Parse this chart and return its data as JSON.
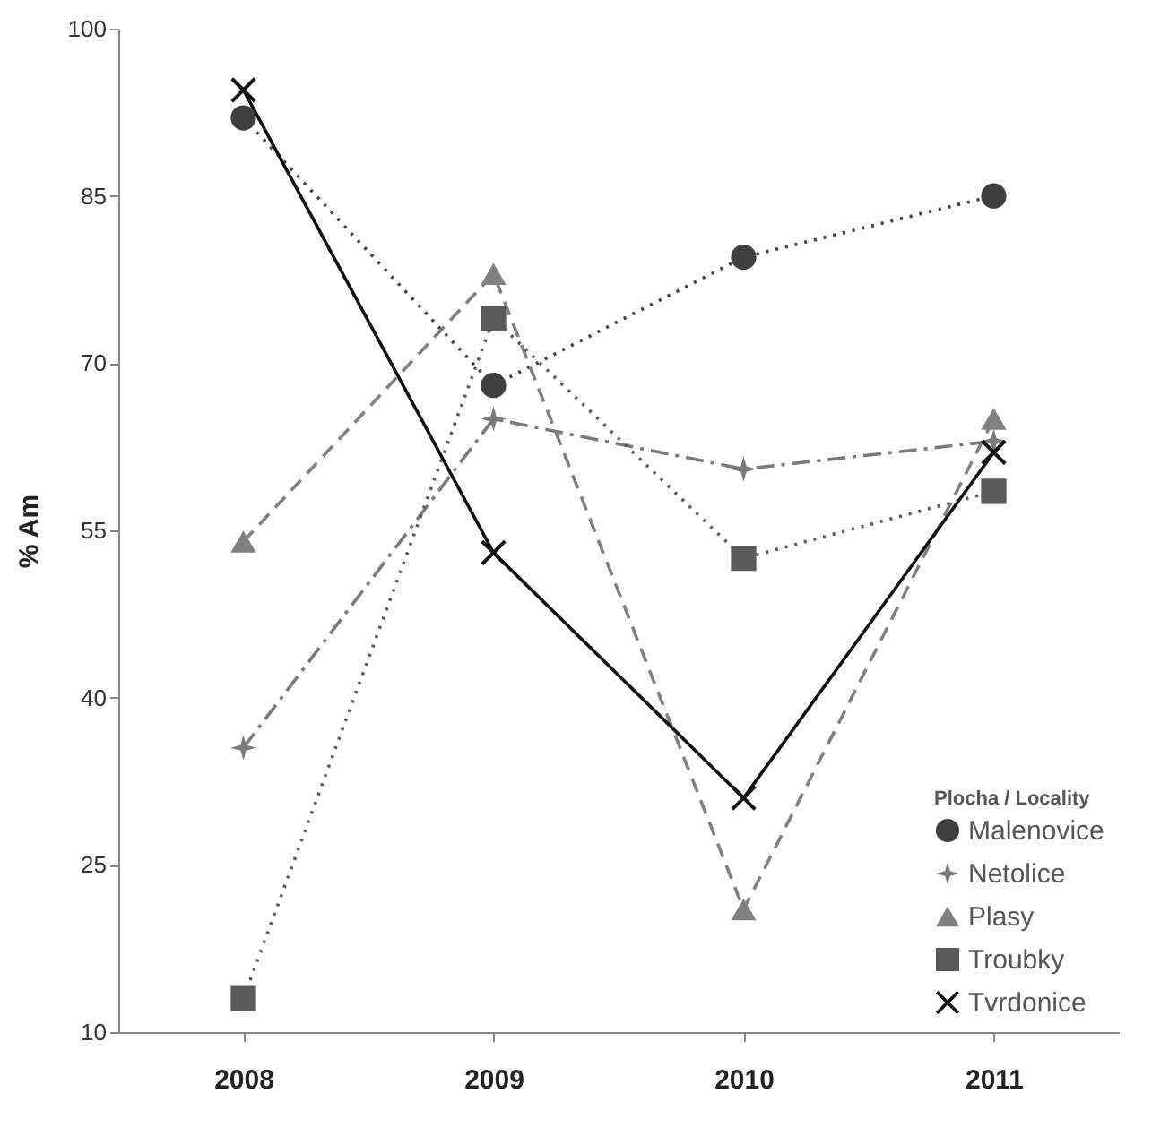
{
  "chart_data": {
    "type": "line",
    "ylabel": "% Am",
    "legend_title": "Plocha / Locality",
    "categories": [
      "2008",
      "2009",
      "2010",
      "2011"
    ],
    "ylim": [
      10,
      100
    ],
    "yticks": [
      10,
      25,
      40,
      55,
      70,
      85,
      100
    ],
    "grid": false,
    "legend": "bottom right",
    "series": [
      {
        "name": "Malenovice",
        "color": "#404040",
        "marker": "circle",
        "line_style": "dotted",
        "values": [
          92,
          68,
          79.5,
          85
        ]
      },
      {
        "name": "Netolice",
        "color": "#7a7a7a",
        "marker": "star",
        "line_style": "dashdot",
        "values": [
          35.5,
          65,
          60.5,
          63
        ]
      },
      {
        "name": "Plasy",
        "color": "#808080",
        "marker": "triangle",
        "line_style": "dashed",
        "values": [
          54,
          78,
          21,
          65
        ]
      },
      {
        "name": "Troubky",
        "color": "#5a5a5a",
        "marker": "square",
        "line_style": "dotted",
        "values": [
          13,
          74,
          52.5,
          58.5
        ]
      },
      {
        "name": "Tvrdonice",
        "color": "#111111",
        "marker": "cross",
        "line_style": "solid",
        "values": [
          94.5,
          53,
          31,
          62
        ]
      }
    ]
  }
}
